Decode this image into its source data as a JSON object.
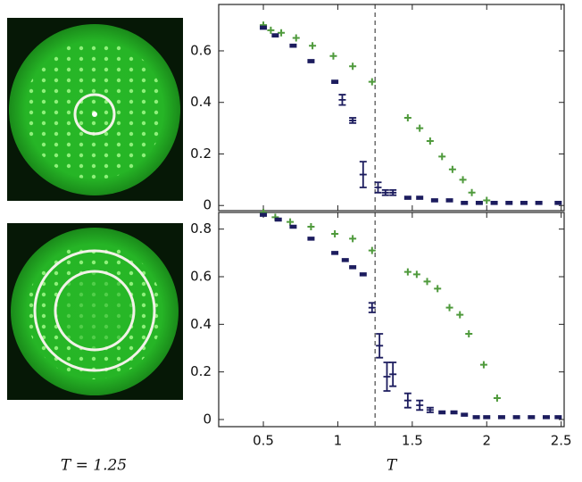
{
  "caption": "T = 1.25",
  "chart_data": [
    {
      "type": "scatter",
      "xlim": [
        0.2,
        2.52
      ],
      "ylim": [
        -0.02,
        0.78
      ],
      "xticks": [
        0.5,
        1,
        1.5,
        2,
        2.5
      ],
      "yticks": [
        0,
        0.2,
        0.4,
        0.6
      ],
      "vline": 1.25,
      "show_xtick_labels": false,
      "series": [
        {
          "color": "#4f9a3c",
          "marker": "plus",
          "x": [
            0.5,
            0.55,
            0.62,
            0.72,
            0.83,
            0.97,
            1.1,
            1.23,
            1.47,
            1.55,
            1.62,
            1.7,
            1.77,
            1.84,
            1.9,
            2.0
          ],
          "values": [
            0.7,
            0.68,
            0.67,
            0.65,
            0.62,
            0.58,
            0.54,
            0.48,
            0.34,
            0.3,
            0.25,
            0.19,
            0.14,
            0.1,
            0.05,
            0.02
          ]
        },
        {
          "color": "#1c1c5e",
          "marker": "errorbar",
          "x": [
            0.5,
            0.58,
            0.7,
            0.82,
            0.98,
            1.03,
            1.1,
            1.17,
            1.27,
            1.32,
            1.37,
            1.47,
            1.55,
            1.65,
            1.75,
            1.85,
            1.95,
            2.05,
            2.15,
            2.25,
            2.35,
            2.48
          ],
          "values": [
            0.69,
            0.66,
            0.62,
            0.56,
            0.48,
            0.41,
            0.33,
            0.12,
            0.07,
            0.05,
            0.05,
            0.03,
            0.03,
            0.02,
            0.02,
            0.01,
            0.01,
            0.01,
            0.01,
            0.01,
            0.01,
            0.01
          ],
          "errors": [
            0.005,
            0.005,
            0.005,
            0.005,
            0.005,
            0.02,
            0.01,
            0.05,
            0.02,
            0.01,
            0.01,
            0.005,
            0.005,
            0.005,
            0.005,
            0.005,
            0.005,
            0.005,
            0.005,
            0.005,
            0.005,
            0.005
          ]
        }
      ]
    },
    {
      "type": "scatter",
      "xlim": [
        0.2,
        2.52
      ],
      "ylim": [
        -0.03,
        0.87
      ],
      "xticks": [
        0.5,
        1,
        1.5,
        2,
        2.5
      ],
      "yticks": [
        0,
        0.2,
        0.4,
        0.6,
        0.8
      ],
      "vline": 1.25,
      "show_xtick_labels": true,
      "xlabel": "T",
      "series": [
        {
          "color": "#4f9a3c",
          "marker": "plus",
          "x": [
            0.5,
            0.58,
            0.68,
            0.82,
            0.98,
            1.1,
            1.23,
            1.47,
            1.53,
            1.6,
            1.67,
            1.75,
            1.82,
            1.88,
            1.98,
            2.07
          ],
          "values": [
            0.87,
            0.85,
            0.83,
            0.81,
            0.78,
            0.76,
            0.71,
            0.62,
            0.61,
            0.58,
            0.55,
            0.47,
            0.44,
            0.36,
            0.23,
            0.09
          ]
        },
        {
          "color": "#1c1c5e",
          "marker": "errorbar",
          "x": [
            0.5,
            0.6,
            0.7,
            0.82,
            0.98,
            1.05,
            1.1,
            1.17,
            1.23,
            1.28,
            1.33,
            1.37,
            1.47,
            1.55,
            1.62,
            1.7,
            1.78,
            1.85,
            1.93,
            2.0,
            2.1,
            2.2,
            2.3,
            2.4,
            2.48
          ],
          "values": [
            0.86,
            0.84,
            0.81,
            0.76,
            0.7,
            0.67,
            0.64,
            0.61,
            0.47,
            0.31,
            0.18,
            0.19,
            0.08,
            0.06,
            0.04,
            0.03,
            0.03,
            0.02,
            0.01,
            0.01,
            0.01,
            0.01,
            0.01,
            0.01,
            0.01
          ],
          "errors": [
            0.005,
            0.005,
            0.005,
            0.005,
            0.005,
            0.005,
            0.005,
            0.005,
            0.02,
            0.05,
            0.06,
            0.05,
            0.03,
            0.02,
            0.01,
            0.005,
            0.005,
            0.005,
            0.005,
            0.005,
            0.005,
            0.005,
            0.005,
            0.005,
            0.005
          ]
        }
      ]
    }
  ]
}
